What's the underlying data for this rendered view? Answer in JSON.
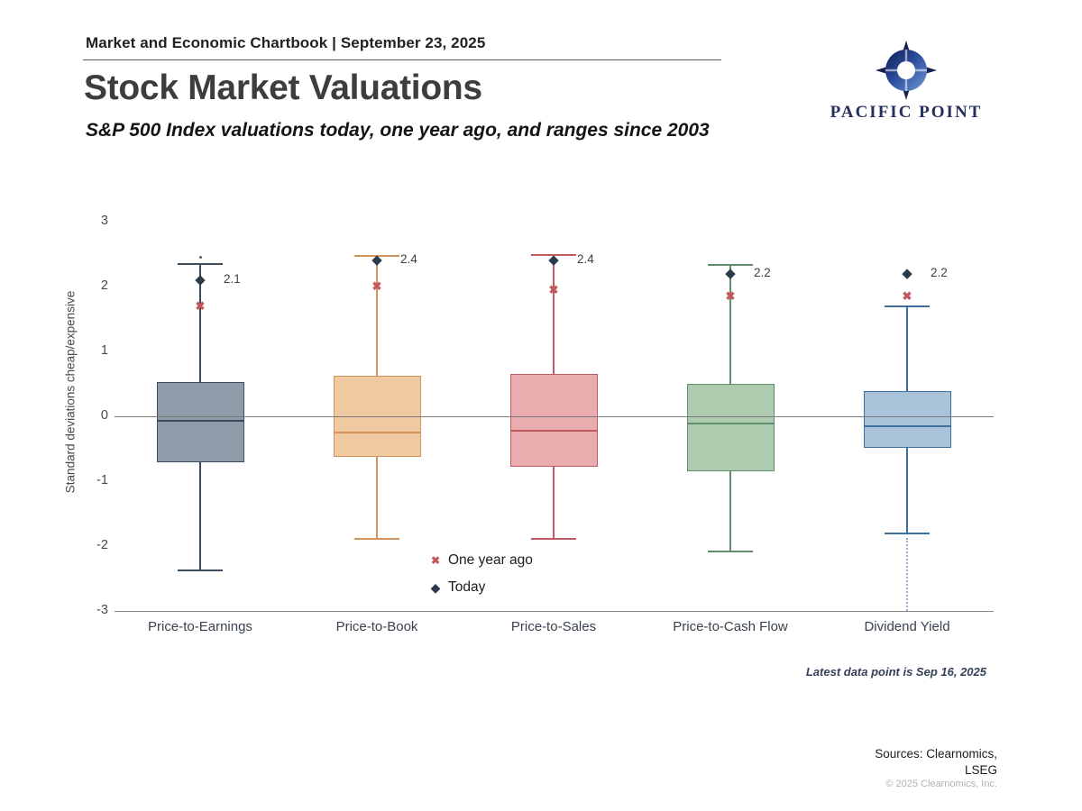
{
  "header": {
    "eyebrow": "Market and Economic Chartbook | September 23, 2025",
    "title": "Stock Market Valuations",
    "subtitle": "S&P 500 Index valuations today, one year ago, and ranges since 2003"
  },
  "logo": {
    "icon": "compass-icon",
    "wordmark": "PACIFIC POINT",
    "color": "#252e5e"
  },
  "legend": {
    "items": [
      {
        "label": "One year ago",
        "marker": "x-marker",
        "color": "#c4575c"
      },
      {
        "label": "Today",
        "marker": "diamond-marker",
        "color": "#2b3b4e"
      }
    ]
  },
  "footer": {
    "latest_note": "Latest data point is Sep 16, 2025",
    "sources_line1": "Sources: Clearnomics,",
    "sources_line2": "LSEG",
    "copyright": "© 2025 Clearnomics, Inc."
  },
  "chart_data": {
    "type": "boxplot",
    "title": "Stock Market Valuations",
    "subtitle": "S&P 500 Index valuations today, one year ago, and ranges since 2003",
    "ylabel": "Standard deviations cheap/expensive",
    "xlabel": "",
    "ylim": [
      -3,
      3.2
    ],
    "yticks": [
      3,
      2,
      1,
      0,
      -1,
      -2,
      -3
    ],
    "grid": false,
    "zero_line": true,
    "legend_position": "inside-bottom-center",
    "categories": [
      "Price-to-Earnings",
      "Price-to-Book",
      "Price-to-Sales",
      "Price-to-Cash Flow",
      "Dividend Yield"
    ],
    "series": [
      {
        "category": "Price-to-Earnings",
        "whisker_high": 2.35,
        "q3": 0.53,
        "median": -0.07,
        "q1": -0.71,
        "whisker_low": -2.38,
        "today": 2.1,
        "today_label": "2.1",
        "one_year_ago": 1.7,
        "fill": "#8e9ba8",
        "stroke": "#3c4c5c",
        "outliers_above": [
          2.45
        ],
        "outlier_trail_below": null
      },
      {
        "category": "Price-to-Book",
        "whisker_high": 2.47,
        "q3": 0.63,
        "median": -0.25,
        "q1": -0.63,
        "whisker_low": -1.89,
        "today": 2.4,
        "today_label": "2.4",
        "one_year_ago": 2.0,
        "fill": "#efc9a0",
        "stroke": "#d2945c",
        "outliers_above": [],
        "outlier_trail_below": null
      },
      {
        "category": "Price-to-Sales",
        "whisker_high": 2.49,
        "q3": 0.65,
        "median": -0.22,
        "q1": -0.78,
        "whisker_low": -1.89,
        "today": 2.4,
        "today_label": "2.4",
        "one_year_ago": 1.95,
        "fill": "#eaacae",
        "stroke": "#c05b60",
        "outliers_above": [],
        "outlier_trail_below": null
      },
      {
        "category": "Price-to-Cash Flow",
        "whisker_high": 2.33,
        "q3": 0.5,
        "median": -0.11,
        "q1": -0.85,
        "whisker_low": -2.08,
        "today": 2.2,
        "today_label": "2.2",
        "one_year_ago": 1.85,
        "fill": "#aecbb0",
        "stroke": "#5f8e6e",
        "outliers_above": [],
        "outlier_trail_below": null
      },
      {
        "category": "Dividend Yield",
        "whisker_high": 1.7,
        "q3": 0.39,
        "median": -0.15,
        "q1": -0.49,
        "whisker_low": -1.81,
        "today": 2.2,
        "today_label": "2.2",
        "one_year_ago": 1.85,
        "fill": "#a9c3db",
        "stroke": "#3e6f9b",
        "outliers_above": [],
        "outlier_trail_below": [
          -1.88,
          -3.0
        ]
      }
    ],
    "marker_colors": {
      "today": "#2b3b4e",
      "one_year_ago": "#c4575c"
    },
    "axis_color": "#7a7a7a"
  }
}
